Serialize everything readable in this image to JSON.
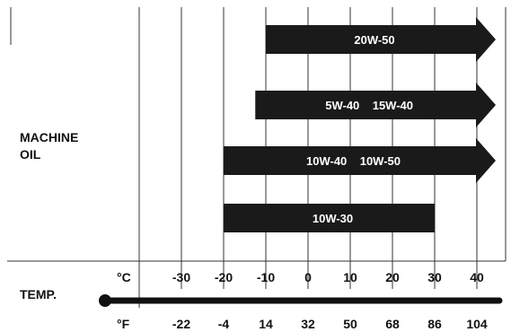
{
  "row_label": {
    "line1": "MACHINE",
    "line2": "OIL"
  },
  "temp": {
    "label": "TEMP.",
    "celsius_unit": "°C",
    "fahrenheit_unit": "°F",
    "celsius_ticks": [
      "-30",
      "-20",
      "-10",
      "0",
      "10",
      "20",
      "30",
      "40"
    ],
    "fahrenheit_ticks": [
      "-22",
      "-4",
      "14",
      "32",
      "50",
      "68",
      "86",
      "104"
    ]
  },
  "chart_data": {
    "type": "bar",
    "x_unit": "°C",
    "xlim": [
      -35,
      45
    ],
    "bars": [
      {
        "label": "20W-50",
        "from": -10,
        "to": 40,
        "open_ended": true
      },
      {
        "label": "5W-40    15W-40",
        "from": -12.5,
        "to": 40,
        "open_ended": true
      },
      {
        "label": "10W-40    10W-50",
        "from": -20,
        "to": 40,
        "open_ended": true
      },
      {
        "label": "10W-30",
        "from": -20,
        "to": 30,
        "open_ended": false
      }
    ]
  },
  "colors": {
    "bar": "#1a1a1a",
    "line": "#111111",
    "grid": "#333333"
  }
}
